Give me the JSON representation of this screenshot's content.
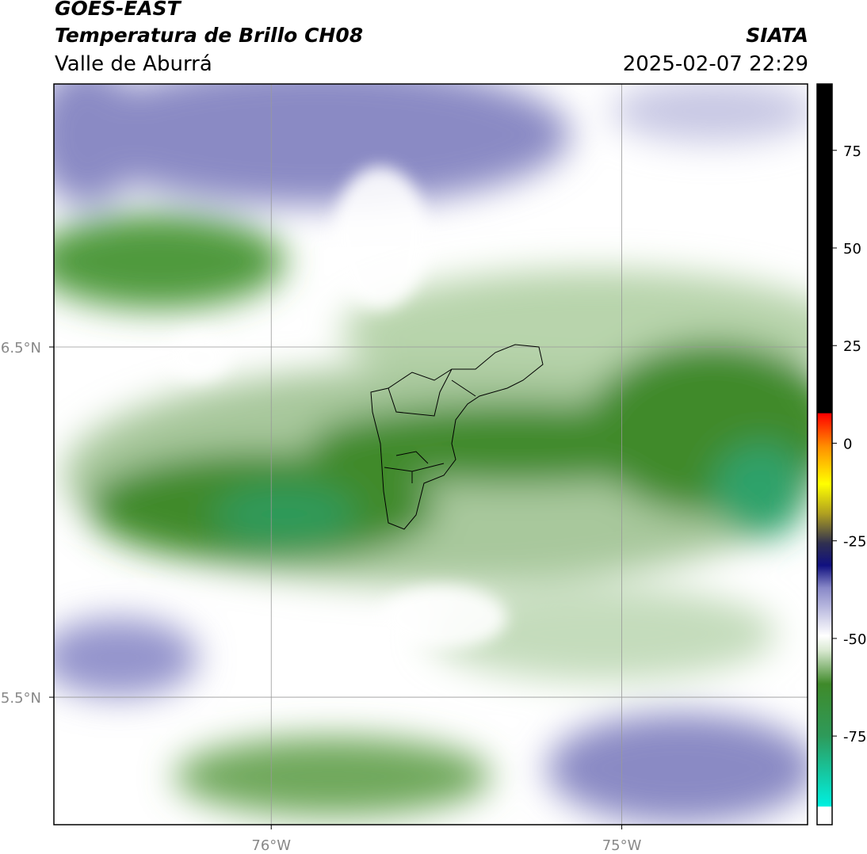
{
  "header": {
    "satellite": "GOES-EAST",
    "product": "Temperatura de Brillo CH08",
    "region": "Valle de Aburrá",
    "agency": "SIATA",
    "datetime": "2025-02-07 22:29"
  },
  "map": {
    "lon_range": [
      -76.62,
      -74.47
    ],
    "lat_range": [
      5.136,
      7.251
    ],
    "lat_ticks": [
      {
        "value": 6.5,
        "label": "6.5°N"
      },
      {
        "value": 5.5,
        "label": "5.5°N"
      }
    ],
    "lon_ticks": [
      {
        "value": -76,
        "label": "76°W"
      },
      {
        "value": -75,
        "label": "75°W"
      }
    ]
  },
  "colorbar": {
    "range": [
      -97.7,
      92
    ],
    "ticks": [
      75,
      50,
      25,
      0,
      -25,
      -50,
      -75
    ]
  }
}
